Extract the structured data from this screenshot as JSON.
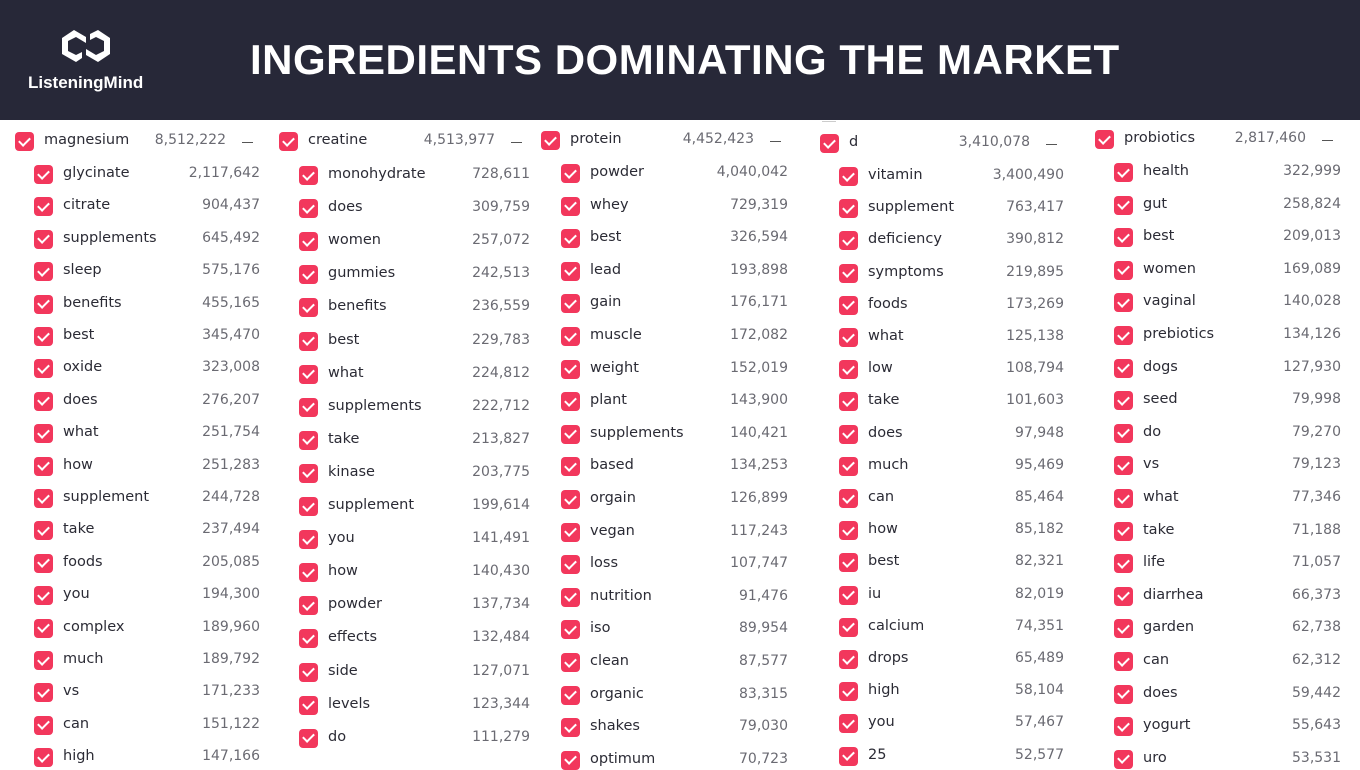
{
  "header": {
    "logo_text": "ListeningMind",
    "title": "INGREDIENTS DOMINATING THE MARKET"
  },
  "columns": [
    {
      "name": "magnesium",
      "count": "8,512,222",
      "items": [
        {
          "term": "glycinate",
          "count": "2,117,642"
        },
        {
          "term": "citrate",
          "count": "904,437"
        },
        {
          "term": "supplements",
          "count": "645,492"
        },
        {
          "term": "sleep",
          "count": "575,176"
        },
        {
          "term": "benefits",
          "count": "455,165"
        },
        {
          "term": "best",
          "count": "345,470"
        },
        {
          "term": "oxide",
          "count": "323,008"
        },
        {
          "term": "does",
          "count": "276,207"
        },
        {
          "term": "what",
          "count": "251,754"
        },
        {
          "term": "how",
          "count": "251,283"
        },
        {
          "term": "supplement",
          "count": "244,728"
        },
        {
          "term": "take",
          "count": "237,494"
        },
        {
          "term": "foods",
          "count": "205,085"
        },
        {
          "term": "you",
          "count": "194,300"
        },
        {
          "term": "complex",
          "count": "189,960"
        },
        {
          "term": "much",
          "count": "189,792"
        },
        {
          "term": "vs",
          "count": "171,233"
        },
        {
          "term": "can",
          "count": "151,122"
        },
        {
          "term": "high",
          "count": "147,166"
        }
      ]
    },
    {
      "name": "creatine",
      "count": "4,513,977",
      "items": [
        {
          "term": "monohydrate",
          "count": "728,611"
        },
        {
          "term": "does",
          "count": "309,759"
        },
        {
          "term": "women",
          "count": "257,072"
        },
        {
          "term": "gummies",
          "count": "242,513"
        },
        {
          "term": "benefits",
          "count": "236,559"
        },
        {
          "term": "best",
          "count": "229,783"
        },
        {
          "term": "what",
          "count": "224,812"
        },
        {
          "term": "supplements",
          "count": "222,712"
        },
        {
          "term": "take",
          "count": "213,827"
        },
        {
          "term": "kinase",
          "count": "203,775"
        },
        {
          "term": "supplement",
          "count": "199,614"
        },
        {
          "term": "you",
          "count": "141,491"
        },
        {
          "term": "how",
          "count": "140,430"
        },
        {
          "term": "powder",
          "count": "137,734"
        },
        {
          "term": "effects",
          "count": "132,484"
        },
        {
          "term": "side",
          "count": "127,071"
        },
        {
          "term": "levels",
          "count": "123,344"
        },
        {
          "term": "do",
          "count": "111,279"
        }
      ]
    },
    {
      "name": "protein",
      "count": "4,452,423",
      "items": [
        {
          "term": "powder",
          "count": "4,040,042"
        },
        {
          "term": "whey",
          "count": "729,319"
        },
        {
          "term": "best",
          "count": "326,594"
        },
        {
          "term": "lead",
          "count": "193,898"
        },
        {
          "term": "gain",
          "count": "176,171"
        },
        {
          "term": "muscle",
          "count": "172,082"
        },
        {
          "term": "weight",
          "count": "152,019"
        },
        {
          "term": "plant",
          "count": "143,900"
        },
        {
          "term": "supplements",
          "count": "140,421"
        },
        {
          "term": "based",
          "count": "134,253"
        },
        {
          "term": "orgain",
          "count": "126,899"
        },
        {
          "term": "vegan",
          "count": "117,243"
        },
        {
          "term": "loss",
          "count": "107,747"
        },
        {
          "term": "nutrition",
          "count": "91,476"
        },
        {
          "term": "iso",
          "count": "89,954"
        },
        {
          "term": "clean",
          "count": "87,577"
        },
        {
          "term": "organic",
          "count": "83,315"
        },
        {
          "term": "shakes",
          "count": "79,030"
        },
        {
          "term": "optimum",
          "count": "70,723"
        }
      ]
    },
    {
      "name": "d",
      "count": "3,410,078",
      "items": [
        {
          "term": "vitamin",
          "count": "3,400,490"
        },
        {
          "term": "supplement",
          "count": "763,417"
        },
        {
          "term": "deficiency",
          "count": "390,812"
        },
        {
          "term": "symptoms",
          "count": "219,895"
        },
        {
          "term": "foods",
          "count": "173,269"
        },
        {
          "term": "what",
          "count": "125,138"
        },
        {
          "term": "low",
          "count": "108,794"
        },
        {
          "term": "take",
          "count": "101,603"
        },
        {
          "term": "does",
          "count": "97,948"
        },
        {
          "term": "much",
          "count": "95,469"
        },
        {
          "term": "can",
          "count": "85,464"
        },
        {
          "term": "how",
          "count": "85,182"
        },
        {
          "term": "best",
          "count": "82,321"
        },
        {
          "term": "iu",
          "count": "82,019"
        },
        {
          "term": "calcium",
          "count": "74,351"
        },
        {
          "term": "drops",
          "count": "65,489"
        },
        {
          "term": "high",
          "count": "58,104"
        },
        {
          "term": "you",
          "count": "57,467"
        },
        {
          "term": "25",
          "count": "52,577"
        }
      ]
    },
    {
      "name": "probiotics",
      "count": "2,817,460",
      "items": [
        {
          "term": "health",
          "count": "322,999"
        },
        {
          "term": "gut",
          "count": "258,824"
        },
        {
          "term": "best",
          "count": "209,013"
        },
        {
          "term": "women",
          "count": "169,089"
        },
        {
          "term": "vaginal",
          "count": "140,028"
        },
        {
          "term": "prebiotics",
          "count": "134,126"
        },
        {
          "term": "dogs",
          "count": "127,930"
        },
        {
          "term": "seed",
          "count": "79,998"
        },
        {
          "term": "do",
          "count": "79,270"
        },
        {
          "term": "vs",
          "count": "79,123"
        },
        {
          "term": "what",
          "count": "77,346"
        },
        {
          "term": "take",
          "count": "71,188"
        },
        {
          "term": "life",
          "count": "71,057"
        },
        {
          "term": "diarrhea",
          "count": "66,373"
        },
        {
          "term": "garden",
          "count": "62,738"
        },
        {
          "term": "can",
          "count": "62,312"
        },
        {
          "term": "does",
          "count": "59,442"
        },
        {
          "term": "yogurt",
          "count": "55,643"
        },
        {
          "term": "uro",
          "count": "53,531"
        }
      ]
    }
  ]
}
